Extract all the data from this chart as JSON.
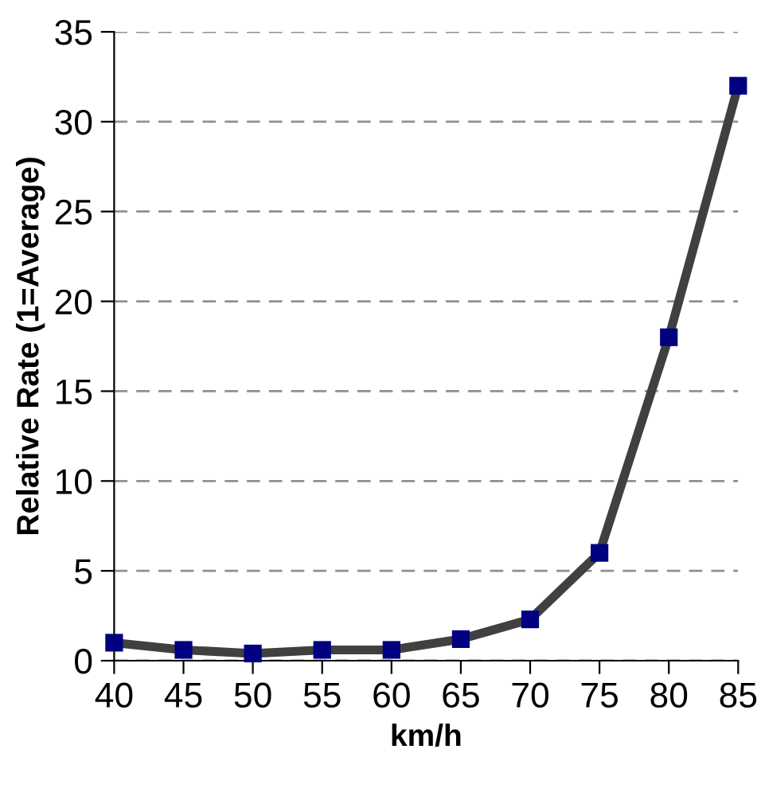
{
  "chart_data": {
    "type": "line",
    "xlabel": "km/h",
    "ylabel": "Relative Rate (1=Average)",
    "x": [
      40,
      45,
      50,
      55,
      60,
      65,
      70,
      75,
      80,
      85
    ],
    "series": [
      {
        "color": "#404040",
        "colors": [
          "#000080",
          "#000080",
          "#000080",
          "#000080",
          "#000080",
          "#000080",
          "#000080",
          "#000080",
          "#000080",
          "#000080"
        ],
        "values": [
          1.0,
          0.6,
          0.4,
          0.6,
          0.6,
          1.2,
          2.3,
          6,
          18,
          32
        ]
      }
    ],
    "xlim": [
      40,
      85
    ],
    "xticks": [
      40,
      45,
      50,
      55,
      60,
      65,
      70,
      75,
      80,
      85
    ],
    "ylim": [
      0,
      35
    ],
    "yticks": [
      0,
      5,
      10,
      15,
      20,
      25,
      30,
      35
    ],
    "grid": "y",
    "marker": "square",
    "line_style": "solid"
  }
}
